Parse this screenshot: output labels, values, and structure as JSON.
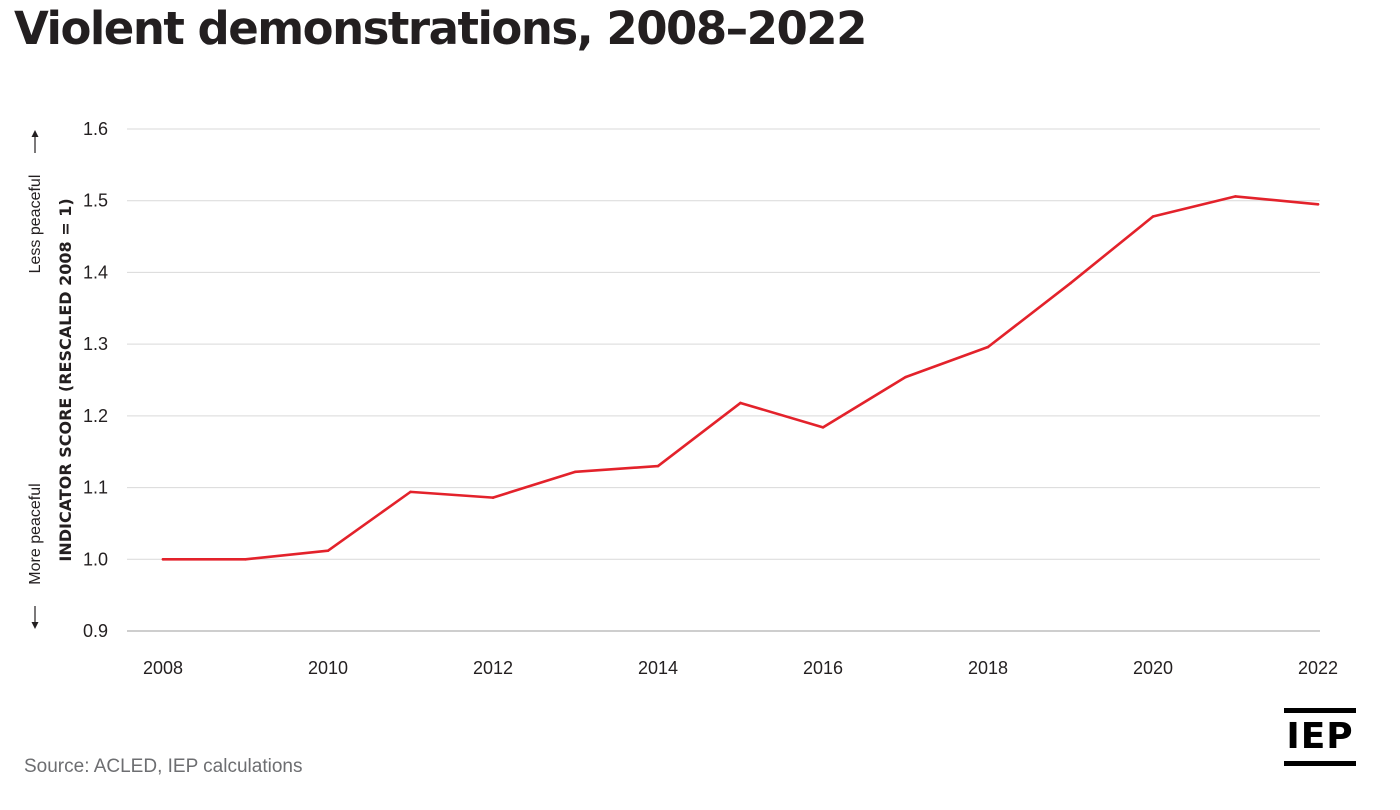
{
  "title": "Violent demonstrations, 2008–2022",
  "source": "Source: ACLED, IEP calculations",
  "logo": "IEP",
  "colors": {
    "line": "#e3222b",
    "grid": "#d9d9d9",
    "text": "#231f20",
    "source": "#6d6e71"
  },
  "chart_data": {
    "type": "line",
    "x": [
      2008,
      2009,
      2010,
      2011,
      2012,
      2013,
      2014,
      2015,
      2016,
      2017,
      2018,
      2019,
      2020,
      2021,
      2022
    ],
    "series": [
      {
        "values": [
          1.0,
          1.0,
          1.012,
          1.094,
          1.086,
          1.122,
          1.13,
          1.218,
          1.184,
          1.254,
          1.296,
          1.385,
          1.478,
          1.506,
          1.495
        ]
      }
    ],
    "ylabel": "INDICATOR SCORE (RESCALED 2008 = 1)",
    "ylabel_top": "Less peaceful",
    "ylabel_bottom": "More peaceful",
    "xticks": [
      2008,
      2010,
      2012,
      2014,
      2016,
      2018,
      2020,
      2022
    ],
    "yticks": [
      "0.9",
      "1.0",
      "1.1",
      "1.2",
      "1.3",
      "1.4",
      "1.5",
      "1.6"
    ],
    "xlim": [
      2008,
      2022
    ],
    "ylim": [
      0.9,
      1.6
    ],
    "grid": true,
    "legend": "none"
  }
}
